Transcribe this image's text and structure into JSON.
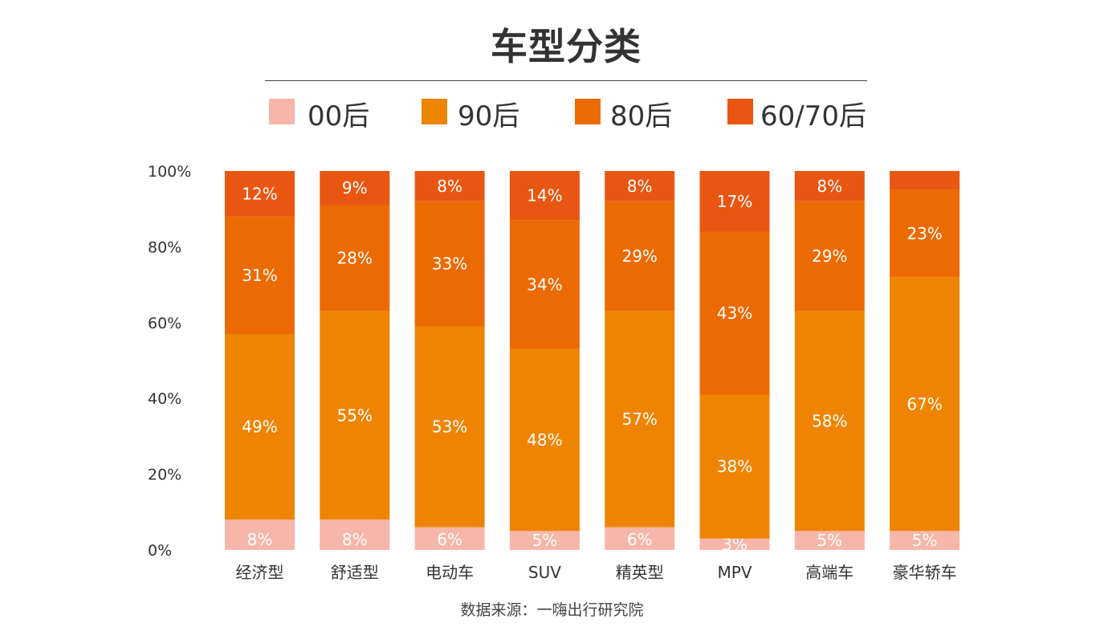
{
  "title": "车型分类",
  "source": "数据来源：一嗨出行研究院",
  "colors": {
    "00后": "#f6b6a9",
    "90后": "#ee8402",
    "80后": "#ec6a02",
    "60/70后": "#e95612"
  },
  "chart_data": {
    "type": "bar",
    "stacked": true,
    "categories": [
      "经济型",
      "舒适型",
      "电动车",
      "SUV",
      "精英型",
      "MPV",
      "高端车",
      "豪华轿车"
    ],
    "series": [
      {
        "name": "00后",
        "values": [
          8,
          8,
          6,
          5,
          6,
          3,
          5,
          5
        ],
        "labels": [
          "8%",
          "8%",
          "6%",
          "5%",
          "6%",
          "3%",
          "5%",
          "5%"
        ]
      },
      {
        "name": "90后",
        "values": [
          49,
          55,
          53,
          48,
          57,
          38,
          58,
          67
        ],
        "labels": [
          "49%",
          "55%",
          "53%",
          "48%",
          "57%",
          "38%",
          "58%",
          "67%"
        ]
      },
      {
        "name": "80后",
        "values": [
          31,
          28,
          33,
          34,
          29,
          43,
          29,
          23
        ],
        "labels": [
          "31%",
          "28%",
          "33%",
          "34%",
          "29%",
          "43%",
          "29%",
          "23%"
        ]
      },
      {
        "name": "60/70后",
        "values": [
          12,
          9,
          8,
          14,
          8,
          17,
          8,
          5
        ],
        "labels": [
          "12%",
          "9%",
          "8%",
          "14%",
          "8%",
          "17%",
          "8%",
          ""
        ]
      }
    ],
    "yticks": [
      "0%",
      "20%",
      "40%",
      "60%",
      "80%",
      "100%"
    ],
    "ylim": [
      0,
      100
    ],
    "legend_position": "top",
    "grid": false
  }
}
